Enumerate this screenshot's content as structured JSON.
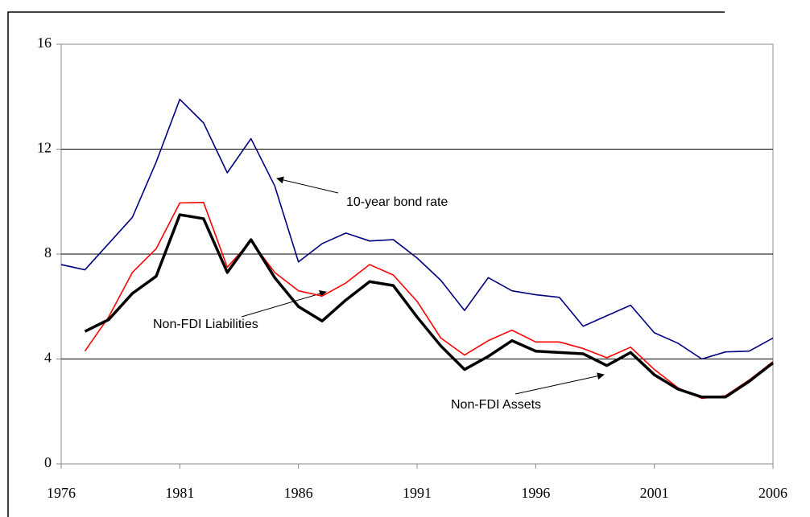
{
  "chart_data": {
    "type": "line",
    "x": [
      1976,
      1977,
      1978,
      1979,
      1980,
      1981,
      1982,
      1983,
      1984,
      1985,
      1986,
      1987,
      1988,
      1989,
      1990,
      1991,
      1992,
      1993,
      1994,
      1995,
      1996,
      1997,
      1998,
      1999,
      2000,
      2001,
      2002,
      2003,
      2004,
      2005,
      2006
    ],
    "series": [
      {
        "name": "10-year bond rate",
        "color": "#000080",
        "values": [
          7.6,
          7.4,
          8.4,
          9.4,
          11.5,
          13.9,
          13.0,
          11.1,
          12.4,
          10.6,
          7.7,
          8.4,
          8.8,
          8.5,
          8.55,
          7.85,
          7.0,
          5.85,
          7.1,
          6.6,
          6.45,
          6.35,
          5.25,
          5.65,
          6.05,
          5.0,
          4.6,
          4.0,
          4.27,
          4.3,
          4.8
        ]
      },
      {
        "name": "Non-FDI Liabilities",
        "color": "#ff0000",
        "values": [
          null,
          4.3,
          5.6,
          7.3,
          8.2,
          9.95,
          9.97,
          7.5,
          8.5,
          7.3,
          6.6,
          6.4,
          6.9,
          7.6,
          7.2,
          6.2,
          4.8,
          4.15,
          4.7,
          5.1,
          4.65,
          4.65,
          4.4,
          4.05,
          4.45,
          3.6,
          2.9,
          2.5,
          2.6,
          3.2,
          3.9
        ]
      },
      {
        "name": "Non-FDI Assets",
        "color": "#000000",
        "values": [
          null,
          5.05,
          5.5,
          6.5,
          7.15,
          9.5,
          9.35,
          7.3,
          8.55,
          7.1,
          6.0,
          5.45,
          6.25,
          6.95,
          6.8,
          5.6,
          4.5,
          3.6,
          4.1,
          4.7,
          4.3,
          4.25,
          4.2,
          3.75,
          4.25,
          3.4,
          2.85,
          2.55,
          2.55,
          3.15,
          3.85
        ]
      }
    ],
    "xlim": [
      1976,
      2006
    ],
    "xticks": [
      1976,
      1981,
      1986,
      1991,
      1996,
      2001,
      2006
    ],
    "ylim": [
      0,
      16
    ],
    "yticks": [
      0,
      4,
      8,
      12,
      16
    ],
    "grid": true
  }
}
